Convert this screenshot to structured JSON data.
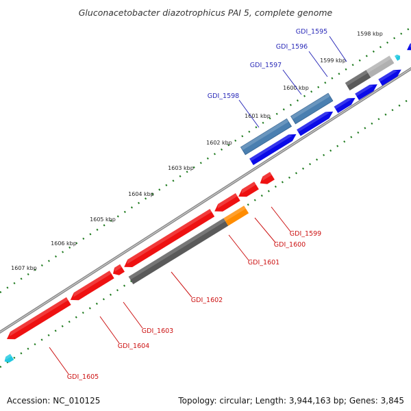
{
  "title": "Gluconacetobacter diazotrophicus PAI 5, complete genome",
  "footer": {
    "accession": "Accession: NC_010125",
    "topology": "Topology: circular; Length: 3,944,163 bp; Genes: 3,845"
  },
  "colors": {
    "backbone": "#8a8a8a",
    "tick_dots": "#1e7a1e",
    "forward_label": "#2a2ab8",
    "reverse_label": "#cc1111",
    "blue_gene": "#0a0ae8",
    "steel_gene": "#4a7fb0",
    "red_gene": "#ee1111",
    "gray_gene": "#5a5a5a",
    "light_gray_gene": "#b0b0b0",
    "orange_gene": "#ff8c00",
    "cyan_gene": "#22c8e0"
  },
  "kbp_ticks": [
    "1598 kbp",
    "1599 kbp",
    "1600 kbp",
    "1601 kbp",
    "1602 kbp",
    "1603 kbp",
    "1604 kbp",
    "1605 kbp",
    "1606 kbp",
    "1607 kbp"
  ],
  "forward_labels": [
    "GDI_1595",
    "GDI_1596",
    "GDI_1597",
    "GDI_1598"
  ],
  "reverse_labels": [
    "GDI_1599",
    "GDI_1600",
    "GDI_1601",
    "GDI_1602",
    "GDI_1603",
    "GDI_1604",
    "GDI_1605"
  ]
}
